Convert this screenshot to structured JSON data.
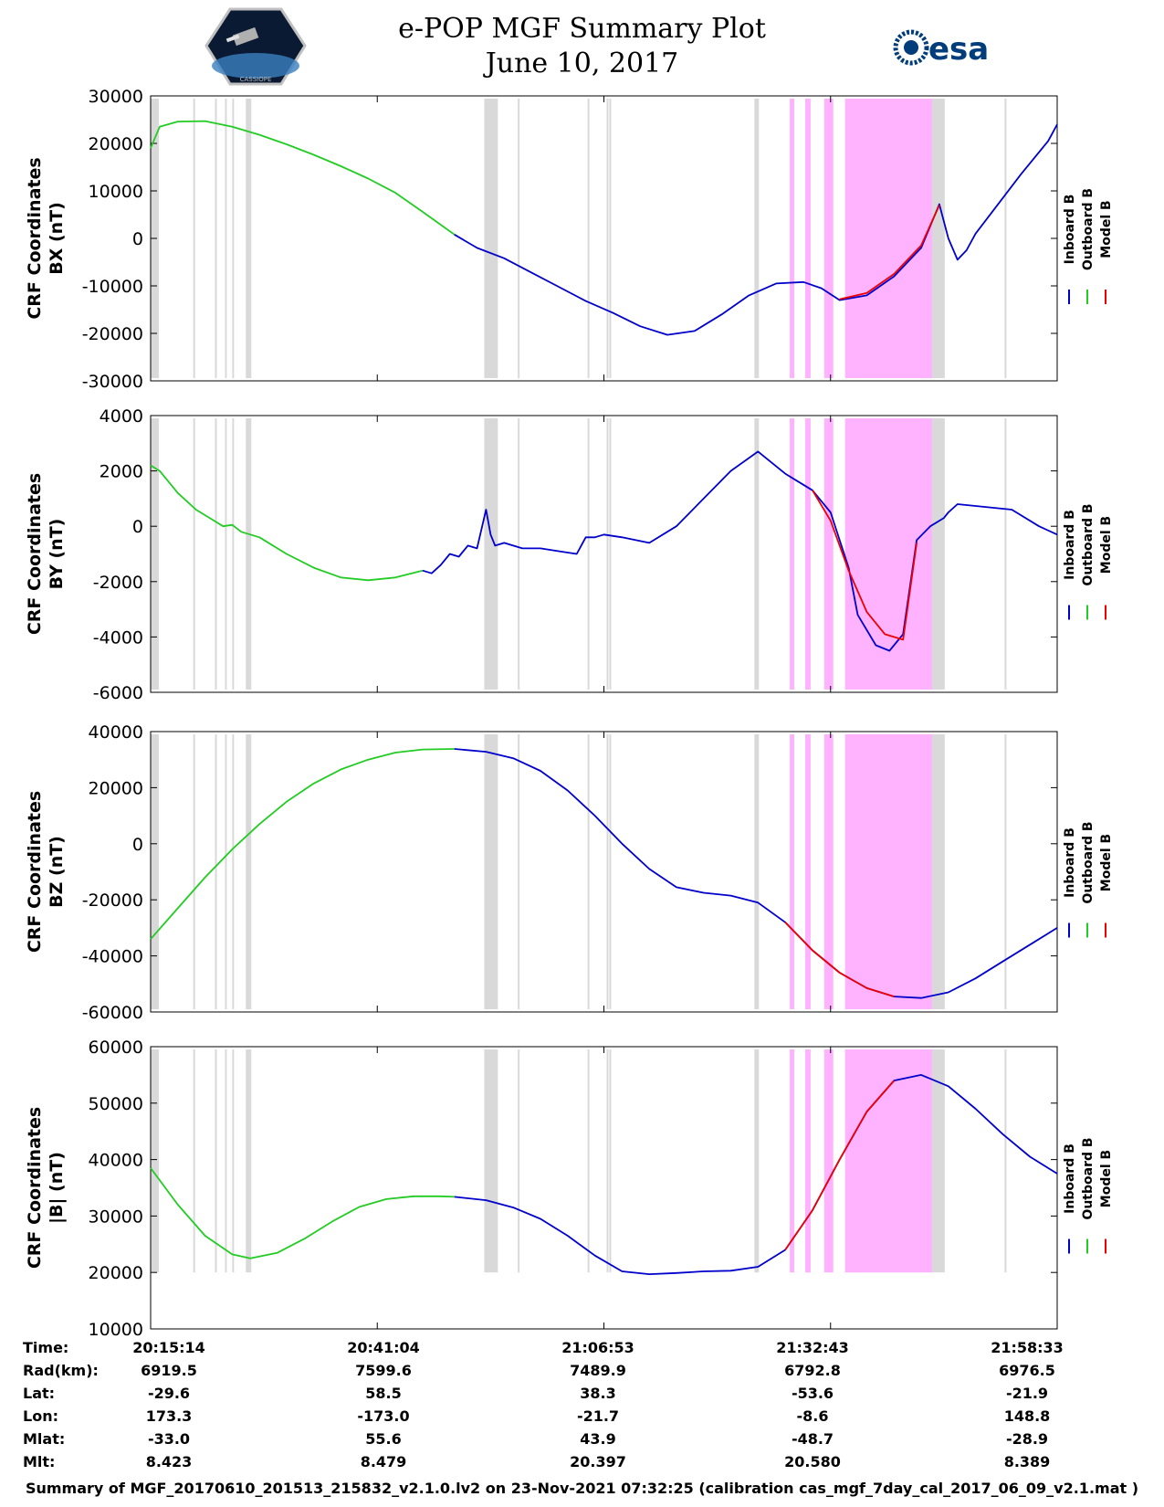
{
  "header": {
    "title_line1": "e-POP MGF Summary Plot",
    "title_line2": "June 10, 2017",
    "left_logo": "cassiope-mission-patch",
    "left_logo_text": "CASSIOPE",
    "right_logo_text": "esa"
  },
  "legend": [
    "Inboard B",
    "Outboard B",
    "Model B"
  ],
  "colors": {
    "inboard": "#0000cc",
    "outboard": "#22cc22",
    "model": "#ee0000",
    "gap_band": "#d9d9d9",
    "highlight_band": "#ffb3ff"
  },
  "chart_data": [
    {
      "type": "line",
      "title": "",
      "ylabel_1": "CRF Coordinates",
      "ylabel_2": "BX (nT)",
      "ylim": [
        -30000,
        30000
      ],
      "yticks": [
        30000,
        20000,
        10000,
        0,
        -10000,
        -20000,
        -30000
      ],
      "xlim": [
        0,
        1
      ],
      "series": [
        {
          "name": "Outboard B",
          "x": [
            0,
            0.01,
            0.03,
            0.06,
            0.09,
            0.12,
            0.15,
            0.18,
            0.21,
            0.24,
            0.27,
            0.3,
            0.335
          ],
          "values": [
            19000,
            23500,
            24600,
            24700,
            23500,
            21800,
            19800,
            17600,
            15200,
            12600,
            9600,
            5600,
            800
          ]
        },
        {
          "name": "Inboard B",
          "x": [
            0.335,
            0.36,
            0.39,
            0.42,
            0.45,
            0.48,
            0.51,
            0.54,
            0.57,
            0.6,
            0.63,
            0.66,
            0.69,
            0.72,
            0.74,
            0.76,
            0.79,
            0.82,
            0.85,
            0.87,
            0.88,
            0.89,
            0.9,
            0.91,
            0.93,
            0.96,
            0.99,
            1.0
          ],
          "values": [
            800,
            -2000,
            -4200,
            -7200,
            -10200,
            -13200,
            -15700,
            -18500,
            -20300,
            -19500,
            -16000,
            -12000,
            -9500,
            -9200,
            -10500,
            -13000,
            -12000,
            -8000,
            -2000,
            7200,
            0,
            -4500,
            -2500,
            1000,
            6000,
            13500,
            20500,
            24000
          ]
        },
        {
          "name": "Model B",
          "x": [
            0.76,
            0.79,
            0.82,
            0.85,
            0.87
          ],
          "values": [
            -12800,
            -11500,
            -7500,
            -1500,
            7000
          ]
        }
      ]
    },
    {
      "type": "line",
      "title": "",
      "ylabel_1": "CRF Coordinates",
      "ylabel_2": "BY (nT)",
      "ylim": [
        -6000,
        4000
      ],
      "yticks": [
        4000,
        2000,
        0,
        -2000,
        -4000,
        -6000
      ],
      "xlim": [
        0,
        1
      ],
      "series": [
        {
          "name": "Outboard B",
          "x": [
            0,
            0.01,
            0.03,
            0.05,
            0.07,
            0.08,
            0.09,
            0.1,
            0.12,
            0.15,
            0.18,
            0.21,
            0.24,
            0.27,
            0.3
          ],
          "values": [
            2200,
            2000,
            1200,
            600,
            200,
            0,
            50,
            -200,
            -400,
            -1000,
            -1500,
            -1850,
            -1950,
            -1850,
            -1600
          ]
        },
        {
          "name": "Inboard B",
          "x": [
            0.3,
            0.31,
            0.32,
            0.33,
            0.34,
            0.35,
            0.36,
            0.37,
            0.375,
            0.38,
            0.39,
            0.4,
            0.41,
            0.43,
            0.45,
            0.47,
            0.48,
            0.49,
            0.5,
            0.52,
            0.55,
            0.58,
            0.61,
            0.64,
            0.67,
            0.7,
            0.71,
            0.73,
            0.75,
            0.77,
            0.78,
            0.8,
            0.815,
            0.83,
            0.845,
            0.86,
            0.875,
            0.88,
            0.89,
            0.92,
            0.95,
            0.98,
            1.0
          ],
          "values": [
            -1600,
            -1700,
            -1400,
            -1000,
            -1100,
            -700,
            -800,
            600,
            -300,
            -700,
            -600,
            -700,
            -800,
            -800,
            -900,
            -1000,
            -400,
            -400,
            -300,
            -400,
            -600,
            0,
            1000,
            2000,
            2700,
            1900,
            1700,
            1300,
            500,
            -1500,
            -3200,
            -4300,
            -4500,
            -3900,
            -500,
            0,
            300,
            500,
            800,
            700,
            600,
            0,
            -300
          ]
        },
        {
          "name": "Model B",
          "x": [
            0.73,
            0.75,
            0.77,
            0.79,
            0.81,
            0.83,
            0.845
          ],
          "values": [
            1300,
            200,
            -1600,
            -3100,
            -3900,
            -4100,
            -600
          ]
        }
      ]
    },
    {
      "type": "line",
      "title": "",
      "ylabel_1": "CRF Coordinates",
      "ylabel_2": "BZ (nT)",
      "ylim": [
        -60000,
        40000
      ],
      "yticks": [
        40000,
        20000,
        0,
        -20000,
        -40000,
        -60000
      ],
      "xlim": [
        0,
        1
      ],
      "series": [
        {
          "name": "Outboard B",
          "x": [
            0,
            0.03,
            0.06,
            0.09,
            0.12,
            0.15,
            0.18,
            0.21,
            0.24,
            0.27,
            0.3,
            0.335
          ],
          "values": [
            -34000,
            -23000,
            -12000,
            -2000,
            7000,
            15000,
            21500,
            26500,
            30000,
            32500,
            33600,
            33800
          ]
        },
        {
          "name": "Inboard B",
          "x": [
            0.335,
            0.37,
            0.4,
            0.43,
            0.46,
            0.49,
            0.52,
            0.55,
            0.58,
            0.61,
            0.64,
            0.67,
            0.7,
            0.73,
            0.76,
            0.79,
            0.82,
            0.85,
            0.88,
            0.91,
            0.94,
            0.97,
            1.0
          ],
          "values": [
            33800,
            32800,
            30500,
            26000,
            19000,
            10000,
            0,
            -9000,
            -15500,
            -17500,
            -18500,
            -21000,
            -28000,
            -38000,
            -46000,
            -51500,
            -54500,
            -55000,
            -53000,
            -48000,
            -42000,
            -36000,
            -30000
          ]
        },
        {
          "name": "Model B",
          "x": [
            0.7,
            0.73,
            0.76,
            0.79,
            0.82
          ],
          "values": [
            -28000,
            -38000,
            -46000,
            -51500,
            -54500
          ]
        }
      ]
    },
    {
      "type": "line",
      "title": "",
      "ylabel_1": "CRF Coordinates",
      "ylabel_2": "|B| (nT)",
      "ylim": [
        10000,
        60000
      ],
      "yticks": [
        60000,
        50000,
        40000,
        30000,
        20000,
        10000
      ],
      "xlim": [
        0,
        1
      ],
      "series": [
        {
          "name": "Outboard B",
          "x": [
            0,
            0.03,
            0.06,
            0.09,
            0.11,
            0.14,
            0.17,
            0.2,
            0.23,
            0.26,
            0.29,
            0.32,
            0.335
          ],
          "values": [
            38500,
            32000,
            26500,
            23200,
            22500,
            23500,
            26000,
            29000,
            31600,
            33000,
            33500,
            33500,
            33400
          ]
        },
        {
          "name": "Inboard B",
          "x": [
            0.335,
            0.37,
            0.4,
            0.43,
            0.46,
            0.49,
            0.52,
            0.55,
            0.58,
            0.61,
            0.64,
            0.67,
            0.7,
            0.73,
            0.76,
            0.79,
            0.82,
            0.85,
            0.88,
            0.91,
            0.94,
            0.97,
            1.0
          ],
          "values": [
            33400,
            32800,
            31500,
            29500,
            26500,
            23000,
            20200,
            19700,
            19900,
            20200,
            20300,
            21000,
            24000,
            31000,
            40000,
            48500,
            54000,
            55000,
            53000,
            49000,
            44500,
            40500,
            37500
          ]
        },
        {
          "name": "Model B",
          "x": [
            0.7,
            0.73,
            0.76,
            0.79,
            0.82
          ],
          "values": [
            24000,
            31000,
            40000,
            48500,
            54000
          ]
        }
      ]
    }
  ],
  "bands": {
    "gap_wide": [
      [
        0.0,
        0.009
      ],
      [
        0.105,
        0.111
      ],
      [
        0.368,
        0.383
      ],
      [
        0.666,
        0.671
      ],
      [
        0.86,
        0.876
      ]
    ],
    "gap_thin": [
      [
        0.047,
        0.049
      ],
      [
        0.071,
        0.073
      ],
      [
        0.082,
        0.084
      ],
      [
        0.09,
        0.092
      ],
      [
        0.405,
        0.407
      ],
      [
        0.482,
        0.484
      ],
      [
        0.503,
        0.505
      ],
      [
        0.506,
        0.508
      ],
      [
        0.942,
        0.944
      ]
    ],
    "highlight": [
      [
        0.705,
        0.71
      ],
      [
        0.722,
        0.728
      ],
      [
        0.743,
        0.753
      ],
      [
        0.766,
        0.862
      ]
    ]
  },
  "x_ticks": [
    0,
    0.25,
    0.5,
    0.75,
    1.0
  ],
  "table": {
    "labels": [
      "Time:",
      "Rad(km):",
      "Lat:",
      "Lon:",
      "Mlat:",
      "Mlt:"
    ],
    "columns": [
      [
        "20:15:14",
        "6919.5",
        "-29.6",
        "173.3",
        "-33.0",
        "8.423"
      ],
      [
        "20:41:04",
        "7599.6",
        "58.5",
        "-173.0",
        "55.6",
        "8.479"
      ],
      [
        "21:06:53",
        "7489.9",
        "38.3",
        "-21.7",
        "43.9",
        "20.397"
      ],
      [
        "21:32:43",
        "6792.8",
        "-53.6",
        "-8.6",
        "-48.7",
        "20.580"
      ],
      [
        "21:58:33",
        "6976.5",
        "-21.9",
        "148.8",
        "-28.9",
        "8.389"
      ]
    ]
  },
  "footer": "Summary of MGF_20170610_201513_215832_v2.1.0.lv2 on 23-Nov-2021 07:32:25 (calibration cas_mgf_7day_cal_2017_06_09_v2.1.mat )"
}
